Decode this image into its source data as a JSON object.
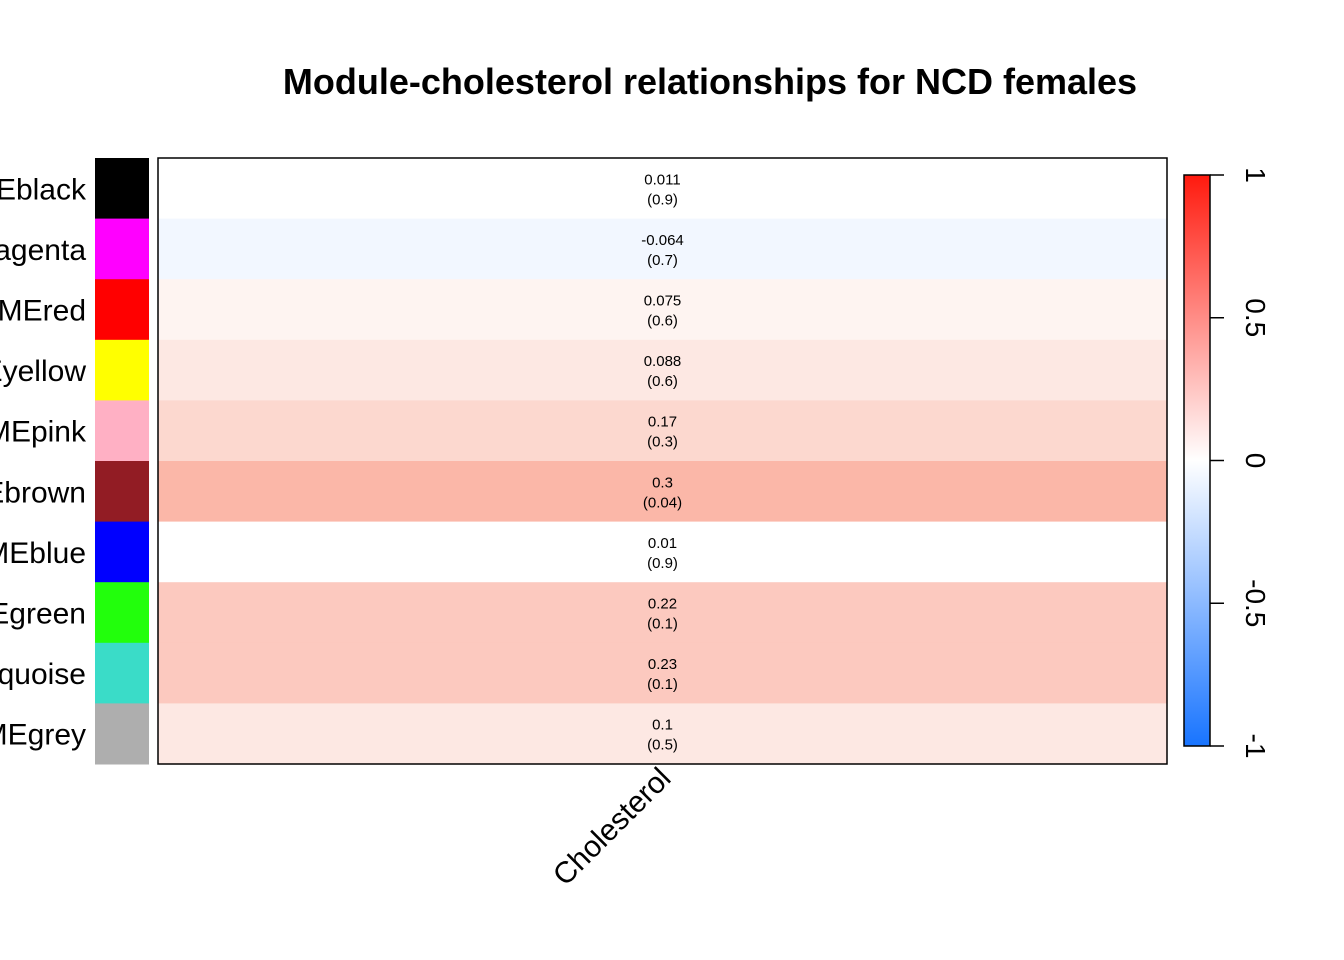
{
  "chart_data": {
    "type": "heatmap",
    "title": "Module-cholesterol relationships for NCD females",
    "rows": [
      {
        "label": "MEblack",
        "swatch": "#000000",
        "value": 0.011,
        "value_text": "0.011",
        "p_text": "(0.9)"
      },
      {
        "label": "MEmagenta",
        "swatch": "#FF00FF",
        "value": -0.064,
        "value_text": "-0.064",
        "p_text": "(0.7)"
      },
      {
        "label": "MEred",
        "swatch": "#FF0000",
        "value": 0.075,
        "value_text": "0.075",
        "p_text": "(0.6)"
      },
      {
        "label": "MEyellow",
        "swatch": "#FFFF00",
        "value": 0.088,
        "value_text": "0.088",
        "p_text": "(0.6)"
      },
      {
        "label": "MEpink",
        "swatch": "#FFB0C4",
        "value": 0.17,
        "value_text": "0.17",
        "p_text": "(0.3)"
      },
      {
        "label": "MEbrown",
        "swatch": "#921C24",
        "value": 0.3,
        "value_text": "0.3",
        "p_text": "(0.04)"
      },
      {
        "label": "MEblue",
        "swatch": "#0000FF",
        "value": 0.01,
        "value_text": "0.01",
        "p_text": "(0.9)"
      },
      {
        "label": "MEgreen",
        "swatch": "#22FF0C",
        "value": 0.22,
        "value_text": "0.22",
        "p_text": "(0.1)"
      },
      {
        "label": "MEturquoise",
        "swatch": "#3ADCC8",
        "value": 0.23,
        "value_text": "0.23",
        "p_text": "(0.1)"
      },
      {
        "label": "MEgrey",
        "swatch": "#AEAEAE",
        "value": 0.1,
        "value_text": "0.1",
        "p_text": "(0.5)"
      }
    ],
    "columns": [
      "Cholesterol"
    ],
    "cell_colors": [
      "#FFFFFF",
      "#F2F7FF",
      "#FEF4F1",
      "#FDE8E3",
      "#FCD8CF",
      "#FBB7A8",
      "#FFFFFF",
      "#FCC9BF",
      "#FCC9BF",
      "#FDE8E3"
    ],
    "colorscale": {
      "range": [
        -1,
        1
      ],
      "ticks": [
        -1,
        -0.5,
        0,
        0.5,
        1
      ],
      "tick_labels": [
        "-1",
        "-0.5",
        "0",
        "0.5",
        "1"
      ],
      "low_color": "#1874FF",
      "mid_color": "#FFFFFF",
      "high_color": "#FF1A0E"
    }
  }
}
